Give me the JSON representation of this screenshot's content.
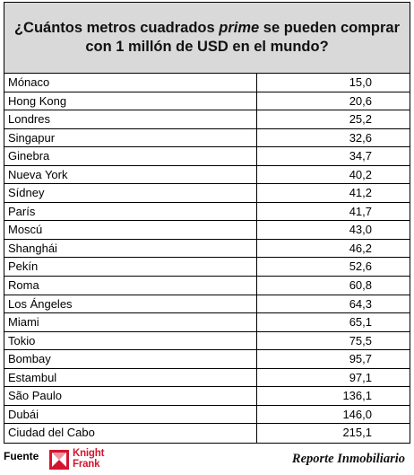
{
  "title_part1": "¿Cuántos metros cuadrados ",
  "title_emphasis": "prime",
  "title_part2": " se pueden comprar con 1 millón de USD en el mundo?",
  "rows": [
    {
      "city": "Mónaco",
      "value": "15,0"
    },
    {
      "city": "Hong Kong",
      "value": "20,6"
    },
    {
      "city": "Londres",
      "value": "25,2"
    },
    {
      "city": "Singapur",
      "value": "32,6"
    },
    {
      "city": "Ginebra",
      "value": "34,7"
    },
    {
      "city": "Nueva York",
      "value": "40,2"
    },
    {
      "city": "Sídney",
      "value": "41,2"
    },
    {
      "city": "París",
      "value": "41,7"
    },
    {
      "city": "Moscú",
      "value": "43,0"
    },
    {
      "city": "Shanghái",
      "value": "46,2"
    },
    {
      "city": "Pekín",
      "value": "52,6"
    },
    {
      "city": "Roma",
      "value": "60,8"
    },
    {
      "city": "Los Ángeles",
      "value": "64,3"
    },
    {
      "city": "Miami",
      "value": "65,1"
    },
    {
      "city": "Tokio",
      "value": "75,5"
    },
    {
      "city": "Bombay",
      "value": "95,7"
    },
    {
      "city": "Estambul",
      "value": "97,1"
    },
    {
      "city": "São Paulo",
      "value": "136,1"
    },
    {
      "city": "Dubái",
      "value": "146,0"
    },
    {
      "city": "Ciudad del Cabo",
      "value": "215,1"
    }
  ],
  "footer": {
    "source_label": "Fuente",
    "logo_line1": "Knight",
    "logo_line2": "Frank",
    "logo_icon": "knight-frank-logo-icon",
    "logo_color": "#d4142f",
    "brand": "Reporte Inmobiliario"
  }
}
